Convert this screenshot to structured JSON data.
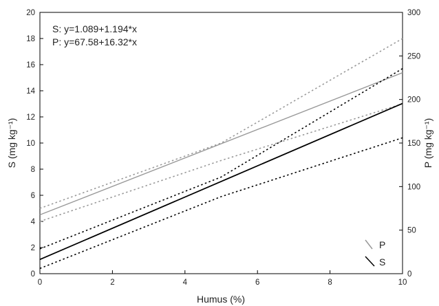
{
  "chart_data": {
    "type": "line",
    "xlabel": "Humus (%)",
    "ylabel_left": "S (mg kg⁻¹)",
    "ylabel_right": "P (mg kg⁻¹)",
    "xlim": [
      0,
      10
    ],
    "ylim_left": [
      0,
      20
    ],
    "ylim_right": [
      0,
      300
    ],
    "x_ticks": [
      "0",
      "2",
      "4",
      "6",
      "8",
      "10"
    ],
    "y_left_ticks": [
      "0",
      "2",
      "4",
      "6",
      "8",
      "10",
      "12",
      "14",
      "16",
      "18",
      "20"
    ],
    "y_right_ticks": [
      "0",
      "50",
      "100",
      "150",
      "200",
      "250",
      "300"
    ],
    "grid": false,
    "legend_position": "bottom-right",
    "annotations": [
      "S: y=1.089+1.194*x",
      "P: y=67.58+16.32*x"
    ],
    "series": [
      {
        "name": "P",
        "axis": "right",
        "color": "#999999",
        "intercept": 67.58,
        "slope": 16.32,
        "x": [
          0,
          10
        ],
        "fit": [
          67.58,
          230.78
        ],
        "ci_upper": {
          "x": [
            0,
            5,
            10
          ],
          "values": [
            75,
            150,
            270
          ]
        },
        "ci_lower": {
          "x": [
            0,
            5,
            10
          ],
          "values": [
            60,
            130,
            195
          ]
        }
      },
      {
        "name": "S",
        "axis": "left",
        "color": "#000000",
        "intercept": 1.089,
        "slope": 1.194,
        "x": [
          0,
          10
        ],
        "fit": [
          1.089,
          13.03
        ],
        "ci_upper": {
          "x": [
            0,
            5,
            10
          ],
          "values": [
            1.9,
            7.4,
            15.7
          ]
        },
        "ci_lower": {
          "x": [
            0,
            5,
            10
          ],
          "values": [
            0.4,
            5.9,
            10.4
          ]
        }
      }
    ]
  }
}
